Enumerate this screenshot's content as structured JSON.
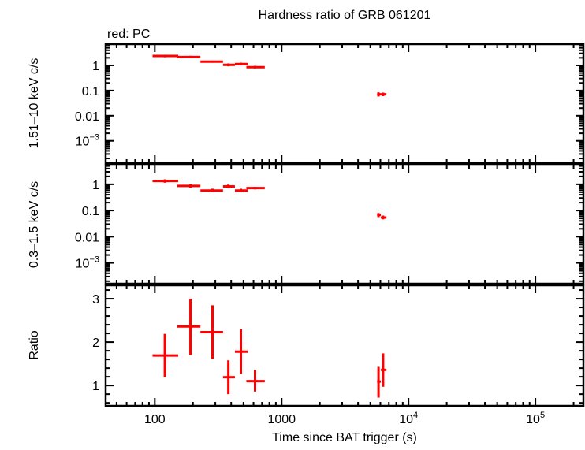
{
  "chart_data": [
    {
      "type": "scatter",
      "title": "Hardness ratio of GRB 061201",
      "annotation": "red: PC",
      "ylabel": "1.51–10 keV c/s",
      "yscale": "log",
      "ylim": [
        0.00013,
        7
      ],
      "yticks": [
        {
          "v": 1,
          "label": "1"
        },
        {
          "v": 0.1,
          "label": "0.1"
        },
        {
          "v": 0.01,
          "label": "0.01"
        },
        {
          "v": 0.001,
          "label": "10",
          "sup": "−3"
        }
      ],
      "series": [
        {
          "color": "#ff0000",
          "points": [
            {
              "x": 120,
              "xlo": 96,
              "xhi": 153,
              "y": 2.37,
              "ylo": 2.1,
              "yhi": 2.65
            },
            {
              "x": 191,
              "xlo": 150,
              "xhi": 229,
              "y": 2.15,
              "ylo": 1.95,
              "yhi": 2.4
            },
            {
              "x": 285,
              "xlo": 229,
              "xhi": 345,
              "y": 1.4,
              "ylo": 1.28,
              "yhi": 1.55
            },
            {
              "x": 380,
              "xlo": 345,
              "xhi": 428,
              "y": 1.05,
              "ylo": 0.92,
              "yhi": 1.2
            },
            {
              "x": 477,
              "xlo": 428,
              "xhi": 541,
              "y": 1.13,
              "ylo": 1.0,
              "yhi": 1.28
            },
            {
              "x": 617,
              "xlo": 527,
              "xhi": 736,
              "y": 0.85,
              "ylo": 0.76,
              "yhi": 0.96
            },
            {
              "x": 5800,
              "xlo": 5650,
              "xhi": 6050,
              "y": 0.071,
              "ylo": 0.058,
              "yhi": 0.085
            },
            {
              "x": 6300,
              "xlo": 6050,
              "xhi": 6700,
              "y": 0.071,
              "ylo": 0.06,
              "yhi": 0.083
            }
          ]
        }
      ]
    },
    {
      "type": "scatter",
      "ylabel": "0.3–1.5 keV c/s",
      "yscale": "log",
      "ylim": [
        0.00016,
        5.6
      ],
      "yticks": [
        {
          "v": 1,
          "label": "1"
        },
        {
          "v": 0.1,
          "label": "0.1"
        },
        {
          "v": 0.01,
          "label": "0.01"
        },
        {
          "v": 0.001,
          "label": "10",
          "sup": "−3"
        }
      ],
      "series": [
        {
          "color": "#ff0000",
          "points": [
            {
              "x": 120,
              "xlo": 96,
              "xhi": 153,
              "y": 1.34,
              "ylo": 1.15,
              "yhi": 1.55
            },
            {
              "x": 191,
              "xlo": 150,
              "xhi": 229,
              "y": 0.87,
              "ylo": 0.75,
              "yhi": 1.0
            },
            {
              "x": 285,
              "xlo": 229,
              "xhi": 345,
              "y": 0.58,
              "ylo": 0.5,
              "yhi": 0.68
            },
            {
              "x": 380,
              "xlo": 345,
              "xhi": 428,
              "y": 0.83,
              "ylo": 0.7,
              "yhi": 0.98
            },
            {
              "x": 477,
              "xlo": 428,
              "xhi": 541,
              "y": 0.58,
              "ylo": 0.5,
              "yhi": 0.68
            },
            {
              "x": 617,
              "xlo": 527,
              "xhi": 736,
              "y": 0.72,
              "ylo": 0.64,
              "yhi": 0.8
            },
            {
              "x": 5800,
              "xlo": 5650,
              "xhi": 6050,
              "y": 0.068,
              "ylo": 0.056,
              "yhi": 0.08
            },
            {
              "x": 6300,
              "xlo": 6050,
              "xhi": 6700,
              "y": 0.054,
              "ylo": 0.046,
              "yhi": 0.064
            }
          ]
        }
      ]
    },
    {
      "type": "scatter",
      "ylabel": "Ratio",
      "yscale": "linear",
      "ylim": [
        0.53,
        3.31
      ],
      "yticks": [
        {
          "v": 1,
          "label": "1"
        },
        {
          "v": 2,
          "label": "2"
        },
        {
          "v": 3,
          "label": "3"
        }
      ],
      "xlabel": "Time since BAT trigger (s)",
      "xscale": "log",
      "xlim": [
        41,
        239000
      ],
      "xticks": [
        {
          "v": 100,
          "label": "100"
        },
        {
          "v": 1000,
          "label": "1000"
        },
        {
          "v": 10000,
          "label": "10",
          "sup": "4"
        },
        {
          "v": 100000,
          "label": "10",
          "sup": "5"
        }
      ],
      "series": [
        {
          "color": "#ff0000",
          "points": [
            {
              "x": 120,
              "xlo": 96,
              "xhi": 153,
              "y": 1.69,
              "ylo": 1.19,
              "yhi": 2.19
            },
            {
              "x": 191,
              "xlo": 150,
              "xhi": 229,
              "y": 2.36,
              "ylo": 1.7,
              "yhi": 3.0
            },
            {
              "x": 285,
              "xlo": 229,
              "xhi": 345,
              "y": 2.23,
              "ylo": 1.61,
              "yhi": 2.85
            },
            {
              "x": 380,
              "xlo": 345,
              "xhi": 428,
              "y": 1.19,
              "ylo": 0.8,
              "yhi": 1.58
            },
            {
              "x": 477,
              "xlo": 428,
              "xhi": 541,
              "y": 1.78,
              "ylo": 1.27,
              "yhi": 2.3
            },
            {
              "x": 617,
              "xlo": 527,
              "xhi": 736,
              "y": 1.1,
              "ylo": 0.86,
              "yhi": 1.36
            },
            {
              "x": 5800,
              "xlo": 5650,
              "xhi": 6050,
              "y": 1.09,
              "ylo": 0.72,
              "yhi": 1.43
            },
            {
              "x": 6300,
              "xlo": 6050,
              "xhi": 6700,
              "y": 1.36,
              "ylo": 0.97,
              "yhi": 1.74
            }
          ]
        }
      ]
    }
  ]
}
